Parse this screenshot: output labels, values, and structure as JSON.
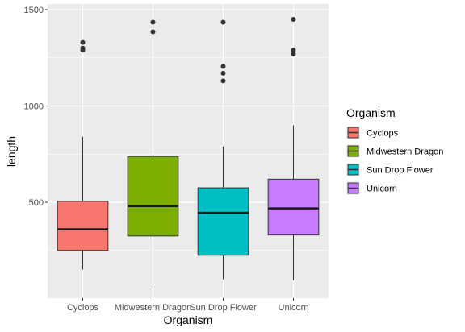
{
  "chart_data": {
    "type": "boxplot",
    "xlabel": "Organism",
    "ylabel": "length",
    "ylim": [
      0,
      1500
    ],
    "yticks": [
      500,
      1000,
      1500
    ],
    "grid": true,
    "legend": {
      "title": "Organism",
      "placement": "right"
    },
    "series": [
      {
        "name": "Cyclops",
        "color": "#F8766D",
        "min": 150,
        "q1": 250,
        "median": 360,
        "q3": 505,
        "max": 840,
        "outliers": [
          1290,
          1300,
          1330
        ]
      },
      {
        "name": "Midwestern Dragon",
        "color": "#7CAE00",
        "min": 75,
        "q1": 325,
        "median": 480,
        "q3": 738,
        "max": 1350,
        "outliers": [
          1385,
          1435
        ]
      },
      {
        "name": "Sun Drop Flower",
        "color": "#00BFC4",
        "min": 100,
        "q1": 225,
        "median": 445,
        "q3": 575,
        "max": 790,
        "outliers": [
          1130,
          1170,
          1205,
          1435
        ]
      },
      {
        "name": "Unicorn",
        "color": "#C77CFF",
        "min": 95,
        "q1": 330,
        "median": 468,
        "q3": 620,
        "max": 900,
        "outliers": [
          1270,
          1290,
          1450
        ]
      }
    ]
  }
}
